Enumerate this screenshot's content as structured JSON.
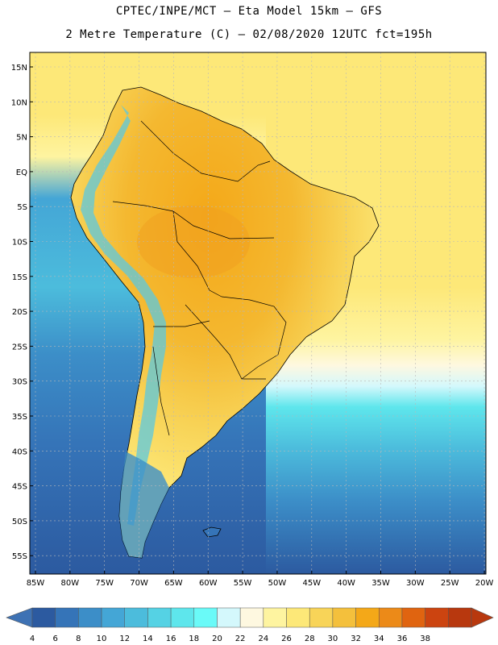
{
  "header": {
    "line1": "CPTEC/INPE/MCT –  Eta Model 15km – GFS",
    "line2": "2 Metre Temperature (C) – 02/08/2020 12UTC fct=195h"
  },
  "map": {
    "region": "South America",
    "lat_labels": [
      "15N",
      "10N",
      "5N",
      "EQ",
      "5S",
      "10S",
      "15S",
      "20S",
      "25S",
      "30S",
      "35S",
      "40S",
      "45S",
      "50S",
      "55S"
    ],
    "lon_labels": [
      "85W",
      "80W",
      "75W",
      "70W",
      "65W",
      "60W",
      "55W",
      "50W",
      "45W",
      "40W",
      "35W",
      "30W",
      "25W",
      "20W"
    ],
    "colors": {
      "ocean_cold": "#2e5fa6",
      "ocean_mid": "#3aa0d0",
      "ocean_cyan": "#5ae6f0",
      "ocean_warm": "#fff0a0",
      "land_hot": "#f0a020",
      "land_warm": "#f7c23c",
      "andes_cool": "#5bc8e0",
      "grid": "#b8b8b8",
      "border": "#000000"
    }
  },
  "legend": {
    "values": [
      "4",
      "6",
      "8",
      "10",
      "12",
      "14",
      "16",
      "18",
      "20",
      "22",
      "24",
      "26",
      "28",
      "30",
      "32",
      "34",
      "36",
      "38"
    ],
    "colors": [
      "#2c5aa0",
      "#3574b8",
      "#3c8ec8",
      "#44a6d6",
      "#4cbcdc",
      "#55d2e4",
      "#5ee6ec",
      "#6afaf8",
      "#d4f8fc",
      "#fef8e0",
      "#fef4a0",
      "#fde878",
      "#f8d458",
      "#f4c03c",
      "#f4a818",
      "#ec8a18",
      "#e06410",
      "#cc4410",
      "#b8380e"
    ],
    "left_arrow_color": "#3e72b4",
    "right_arrow_color": "#b8380e"
  }
}
